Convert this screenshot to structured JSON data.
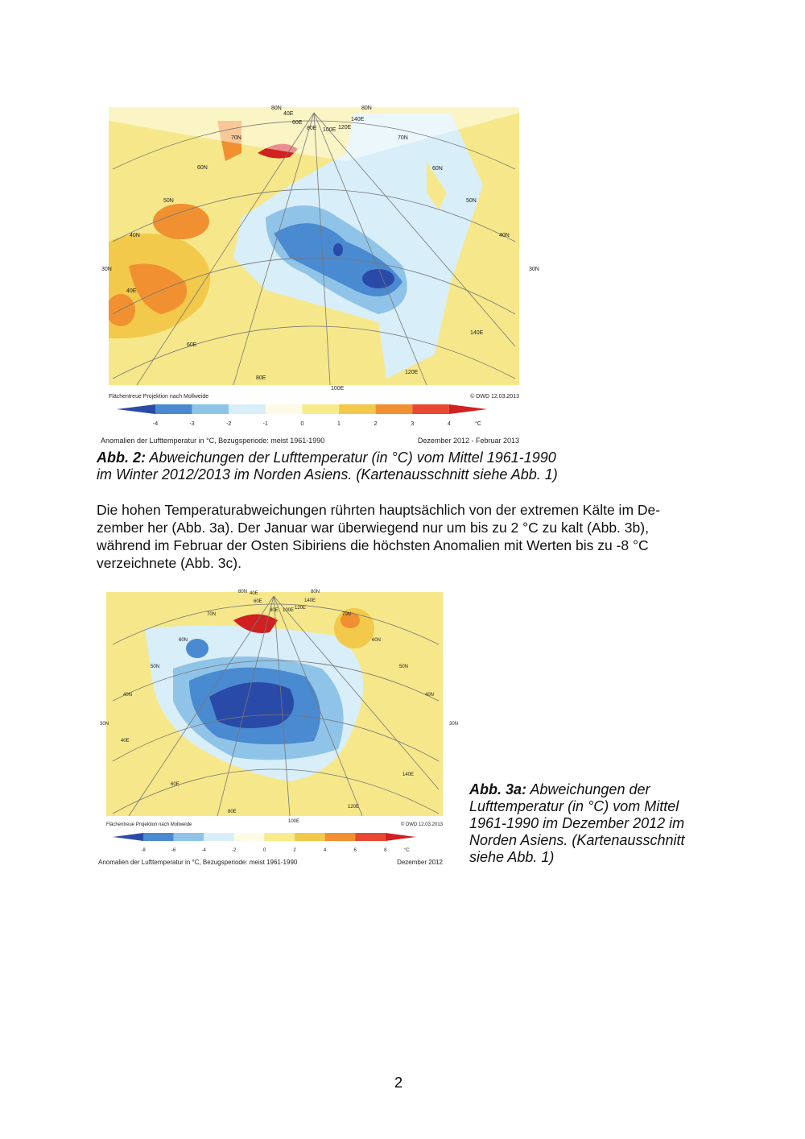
{
  "figure1": {
    "grid_labels": [
      "80N",
      "40E",
      "60E",
      "80E",
      "100E",
      "120E",
      "140E",
      "80N",
      "70N",
      "70N",
      "60N",
      "60N",
      "50N",
      "50N",
      "40N",
      "40N",
      "30N",
      "30N",
      "40E",
      "60E",
      "80E",
      "100E",
      "120E",
      "140E"
    ],
    "projection": "Flächentreue Projektion nach Mollweide",
    "credit": "© DWD 12.03.2013",
    "colorbar_ticks": [
      -4,
      -3,
      -2,
      -1,
      0,
      1,
      2,
      3,
      4
    ],
    "unit": "°C",
    "legend_title": "Anomalien der Lufttemperatur in °C, Bezugsperiode: meist 1961-1990",
    "period": "Dezember 2012 - Februar 2013",
    "caption": {
      "label": "Abb. 2:",
      "lines": [
        "Abweichungen der Lufttemperatur (in °C) vom Mittel 1961-1990",
        "im Winter 2012/2013 im Norden Asiens. (Kartenausschnitt siehe Abb. 1)"
      ]
    }
  },
  "paragraph": [
    "Die hohen Temperaturabweichungen rührten hauptsächlich von der extremen Kälte im De-",
    "zember her (Abb. 3a). Der Januar war überwiegend nur um bis zu 2 °C zu kalt (Abb. 3b),",
    "während im Februar der Osten Sibiriens die höchsten Anomalien mit Werten bis zu -8 °C",
    "verzeichnete (Abb. 3c)."
  ],
  "figure2": {
    "grid_labels": [
      "80N",
      "40E",
      "60E",
      "80E",
      "100E",
      "120E",
      "140E",
      "80N",
      "70N",
      "70N",
      "60N",
      "60N",
      "50N",
      "50N",
      "40N",
      "40N",
      "30N",
      "30N",
      "40E",
      "60E",
      "80E",
      "100E",
      "120E",
      "140E"
    ],
    "projection": "Flächentreue Projektion nach Mollweide",
    "credit": "© DWD 12.03.2013",
    "colorbar_ticks": [
      -8,
      -6,
      -4,
      -2,
      0,
      2,
      4,
      6,
      8
    ],
    "unit": "°C",
    "legend_title": "Anomalien der Lufttemperatur in °C, Bezugsperiode: meist 1961-1990",
    "period": "Dezember 2012",
    "caption": {
      "label": "Abb. 3a:",
      "lines": [
        "Abweichungen der",
        "Lufttemperatur (in °C) vom Mittel",
        "1961-1990 im Dezember 2012 im",
        "Norden Asiens. (Kartenausschnitt",
        "siehe Abb. 1)"
      ]
    }
  },
  "page_number": "2"
}
